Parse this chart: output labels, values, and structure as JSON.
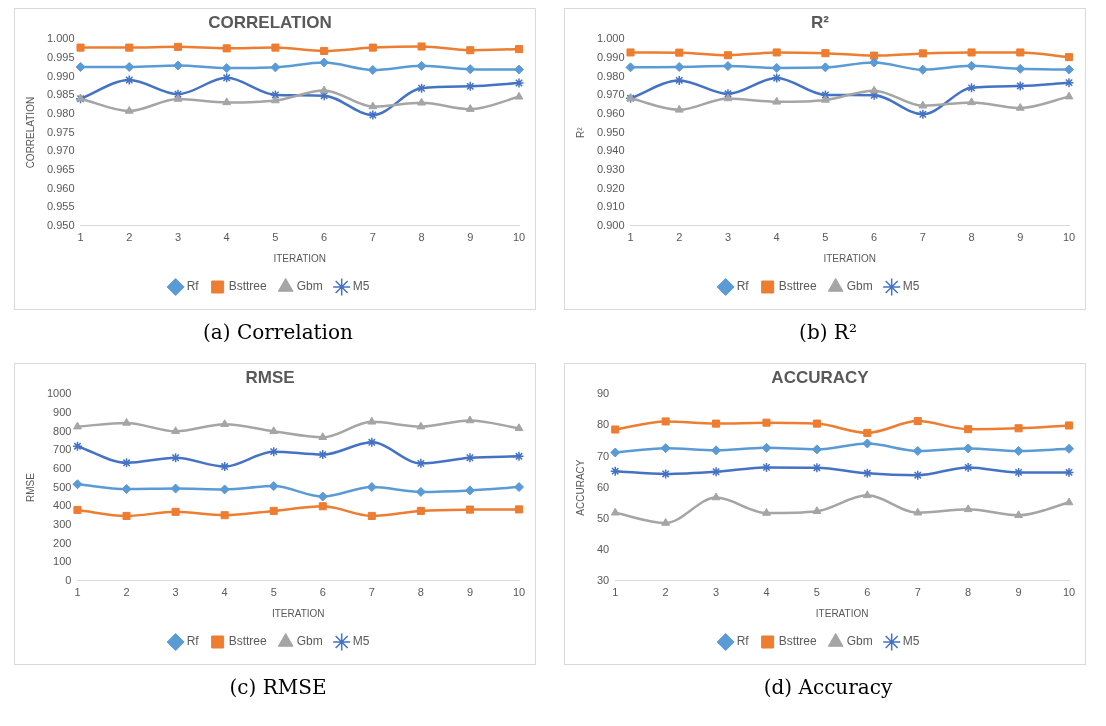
{
  "chart_data": [
    {
      "type": "line",
      "title": "CORRELATION",
      "xlabel": "ITERATION",
      "ylabel": "CORRELATION",
      "annotations": [
        "(a) Correlation"
      ],
      "categories": [
        "1",
        "2",
        "3",
        "4",
        "5",
        "6",
        "7",
        "8",
        "9",
        "10"
      ],
      "ylim": [
        0.95,
        1.0
      ],
      "yticks": [
        {
          "value": 0.95,
          "label": "0.950"
        },
        {
          "value": 0.955,
          "label": "0.955"
        },
        {
          "value": 0.96,
          "label": "0.960"
        },
        {
          "value": 0.965,
          "label": "0.965"
        },
        {
          "value": 0.97,
          "label": "0.970"
        },
        {
          "value": 0.975,
          "label": "0.975"
        },
        {
          "value": 0.98,
          "label": "0.980"
        },
        {
          "value": 0.985,
          "label": "0.985"
        },
        {
          "value": 0.99,
          "label": "0.990"
        },
        {
          "value": 0.995,
          "label": "0.995"
        },
        {
          "value": 1.0,
          "label": "1.000"
        }
      ],
      "grid": false,
      "legend": "bottom",
      "series": [
        {
          "name": "Rf",
          "color": "#5b9bd5",
          "marker": "diamond",
          "values": [
            0.9926,
            0.9926,
            0.993,
            0.9923,
            0.9925,
            0.9938,
            0.9918,
            0.9929,
            0.992,
            0.9919
          ]
        },
        {
          "name": "Bsttree",
          "color": "#ed7d31",
          "marker": "square",
          "values": [
            0.9978,
            0.9978,
            0.998,
            0.9976,
            0.9978,
            0.9969,
            0.9978,
            0.9981,
            0.9971,
            0.9974
          ]
        },
        {
          "name": "Gbm",
          "color": "#a5a5a5",
          "marker": "triangle",
          "values": [
            0.9841,
            0.9808,
            0.984,
            0.9831,
            0.9836,
            0.9863,
            0.982,
            0.983,
            0.9813,
            0.9846
          ]
        },
        {
          "name": "M5",
          "color": "#4472c4",
          "marker": "cross",
          "values": [
            0.9841,
            0.9891,
            0.9853,
            0.9897,
            0.9851,
            0.9849,
            0.9797,
            0.9869,
            0.9874,
            0.9883
          ]
        }
      ]
    },
    {
      "type": "line",
      "title": "R²",
      "xlabel": "ITERATION",
      "ylabel": "R²",
      "annotations": [
        "(b) R²"
      ],
      "categories": [
        "1",
        "2",
        "3",
        "4",
        "5",
        "6",
        "7",
        "8",
        "9",
        "10"
      ],
      "ylim": [
        0.9,
        1.0
      ],
      "yticks": [
        {
          "value": 0.9,
          "label": "0.900"
        },
        {
          "value": 0.91,
          "label": "0.910"
        },
        {
          "value": 0.92,
          "label": "0.920"
        },
        {
          "value": 0.93,
          "label": "0.930"
        },
        {
          "value": 0.94,
          "label": "0.940"
        },
        {
          "value": 0.95,
          "label": "0.950"
        },
        {
          "value": 0.96,
          "label": "0.960"
        },
        {
          "value": 0.97,
          "label": "0.970"
        },
        {
          "value": 0.98,
          "label": "0.980"
        },
        {
          "value": 0.99,
          "label": "0.990"
        },
        {
          "value": 1.0,
          "label": "1.000"
        }
      ],
      "grid": false,
      "legend": "bottom",
      "series": [
        {
          "name": "Rf",
          "color": "#5b9bd5",
          "marker": "diamond",
          "values": [
            0.985,
            0.9852,
            0.9857,
            0.9847,
            0.985,
            0.9876,
            0.9837,
            0.9858,
            0.9842,
            0.9838
          ]
        },
        {
          "name": "Bsttree",
          "color": "#ed7d31",
          "marker": "square",
          "values": [
            0.993,
            0.9929,
            0.9915,
            0.993,
            0.9926,
            0.9913,
            0.9925,
            0.993,
            0.993,
            0.9905
          ]
        },
        {
          "name": "Gbm",
          "color": "#a5a5a5",
          "marker": "triangle",
          "values": [
            0.9684,
            0.9622,
            0.9683,
            0.9665,
            0.9675,
            0.9725,
            0.9644,
            0.9662,
            0.9632,
            0.9693
          ]
        },
        {
          "name": "M5",
          "color": "#4472c4",
          "marker": "cross",
          "values": [
            0.9684,
            0.978,
            0.9708,
            0.9793,
            0.9702,
            0.97,
            0.9598,
            0.974,
            0.975,
            0.9768
          ]
        }
      ]
    },
    {
      "type": "line",
      "title": "RMSE",
      "xlabel": "ITERATION",
      "ylabel": "RMSE",
      "annotations": [
        "(c) RMSE"
      ],
      "categories": [
        "1",
        "2",
        "3",
        "4",
        "5",
        "6",
        "7",
        "8",
        "9",
        "10"
      ],
      "ylim": [
        0,
        1000
      ],
      "yticks": [
        0,
        100,
        200,
        300,
        400,
        500,
        600,
        700,
        800,
        900,
        1000
      ],
      "grid": false,
      "legend": "bottom",
      "series": [
        {
          "name": "Rf",
          "color": "#5b9bd5",
          "marker": "diamond",
          "values": [
            518,
            492,
            495,
            490,
            508,
            452,
            503,
            477,
            485,
            503
          ]
        },
        {
          "name": "Bsttree",
          "color": "#ed7d31",
          "marker": "square",
          "values": [
            380,
            348,
            370,
            352,
            375,
            400,
            348,
            375,
            382,
            383
          ]
        },
        {
          "name": "Gbm",
          "color": "#a5a5a5",
          "marker": "triangle",
          "values": [
            827,
            847,
            802,
            840,
            802,
            770,
            853,
            827,
            860,
            818
          ]
        },
        {
          "name": "M5",
          "color": "#4472c4",
          "marker": "cross",
          "values": [
            722,
            633,
            660,
            613,
            693,
            677,
            743,
            630,
            660,
            668
          ]
        }
      ]
    },
    {
      "type": "line",
      "title": "ACCURACY",
      "xlabel": "ITERATION",
      "ylabel": "ACCURACY",
      "annotations": [
        "(d) Accuracy"
      ],
      "categories": [
        "1",
        "2",
        "3",
        "4",
        "5",
        "6",
        "7",
        "8",
        "9",
        "10"
      ],
      "ylim": [
        30,
        90
      ],
      "yticks": [
        30,
        40,
        50,
        60,
        70,
        80,
        90
      ],
      "grid": false,
      "legend": "bottom",
      "series": [
        {
          "name": "Rf",
          "color": "#5b9bd5",
          "marker": "diamond",
          "values": [
            71.3,
            72.7,
            72.0,
            72.8,
            72.3,
            74.2,
            71.8,
            72.6,
            71.8,
            72.5
          ]
        },
        {
          "name": "Bsttree",
          "color": "#ed7d31",
          "marker": "square",
          "values": [
            78.7,
            81.3,
            80.6,
            80.9,
            80.6,
            77.6,
            81.4,
            78.8,
            79.1,
            80.0
          ]
        },
        {
          "name": "Gbm",
          "color": "#a5a5a5",
          "marker": "triangle",
          "values": [
            51.9,
            48.6,
            56.8,
            51.8,
            52.4,
            57.5,
            51.9,
            53.0,
            51.1,
            55.2
          ]
        },
        {
          "name": "M5",
          "color": "#4472c4",
          "marker": "cross",
          "values": [
            65.3,
            64.4,
            65.1,
            66.5,
            66.4,
            64.6,
            64.0,
            66.5,
            64.9,
            64.9
          ]
        }
      ]
    }
  ]
}
